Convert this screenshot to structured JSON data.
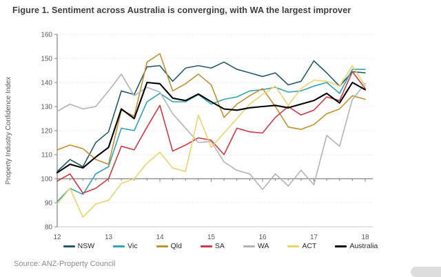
{
  "title": "Figure 1. Sentiment across Australia is converging, with WA the largest improver",
  "source": "Source: ANZ-Property Council",
  "colors": {
    "title_text": "#3d3d3d",
    "axis_line": "#808080",
    "grid_dotted": "#d9d9d9",
    "bottom_border": "#c9c9c9",
    "tick_text": "#595959",
    "source_text": "#8a8a8a"
  },
  "chart_data": {
    "type": "line",
    "title": "Figure 1. Sentiment across Australia is converging, with WA the largest improver",
    "ylabel": "Property Industry Confidence Index",
    "xlabel": "",
    "ylim": [
      80,
      160
    ],
    "ytick_step": 10,
    "baseline_axis_value": 100,
    "grid": "dotted horizontal, solid line at 100",
    "legend_position": "bottom",
    "x_unit": "quarterly",
    "x_year_ticks": [
      "12",
      "13",
      "14",
      "15",
      "16",
      "17",
      "18"
    ],
    "points_per_year": 4,
    "n_points": 25,
    "series": [
      {
        "name": "NSW",
        "color": "#215968",
        "values": [
          103,
          108,
          105,
          115,
          119.5,
          136.5,
          135,
          146.5,
          147,
          140.5,
          146,
          147,
          146,
          148.5,
          145.5,
          144,
          142.5,
          144,
          139,
          140.5,
          149,
          144,
          138.5,
          144.5,
          144
        ]
      },
      {
        "name": "Vic",
        "color": "#31a2b4",
        "values": [
          90.5,
          96,
          93.5,
          102,
          105,
          121,
          120,
          132,
          135.5,
          132,
          132,
          135,
          131,
          133,
          134,
          136.5,
          137,
          138,
          136,
          136.5,
          138.5,
          140,
          135.5,
          145.5,
          145.5
        ]
      },
      {
        "name": "Qld",
        "color": "#c18f2e",
        "values": [
          112,
          114,
          112.5,
          108,
          106,
          128.5,
          126,
          148.5,
          152,
          136.5,
          139.5,
          143.5,
          139,
          125.5,
          131,
          134.5,
          137.5,
          130,
          121.5,
          120.5,
          122.5,
          127,
          129,
          134.5,
          133
        ]
      },
      {
        "name": "SA",
        "color": "#cd3741",
        "values": [
          99,
          102,
          94,
          96,
          100,
          113.5,
          112,
          121.5,
          130.5,
          111.5,
          114,
          117,
          116,
          110,
          121,
          119.5,
          119,
          125.5,
          130,
          126.5,
          128.5,
          134,
          132.5,
          144.5,
          137.5
        ]
      },
      {
        "name": "WA",
        "color": "#b2b2b2",
        "values": [
          128,
          131,
          129,
          130,
          136.5,
          143.5,
          134.5,
          138,
          136,
          127,
          121,
          115,
          115.5,
          107,
          103.5,
          102,
          95.5,
          102,
          97,
          103.5,
          97.5,
          118,
          113.5,
          133,
          139.5
        ]
      },
      {
        "name": "ACT",
        "color": "#e8d468",
        "values": [
          89.5,
          96,
          84,
          89.5,
          91,
          98,
          100,
          106.5,
          111,
          104.5,
          103,
          126.5,
          113,
          119,
          125,
          131,
          135,
          138.5,
          130.5,
          137.5,
          141,
          140.5,
          138.5,
          147,
          138.5
        ]
      },
      {
        "name": "Australia",
        "color": "#000000",
        "values": [
          102.5,
          106,
          104.5,
          109,
          113,
          129,
          125,
          140,
          139.5,
          133.5,
          132.5,
          135.2,
          132,
          129,
          128.5,
          129.5,
          130,
          130.5,
          129.5,
          131,
          132.5,
          135.5,
          131.5,
          140,
          137
        ]
      }
    ]
  }
}
